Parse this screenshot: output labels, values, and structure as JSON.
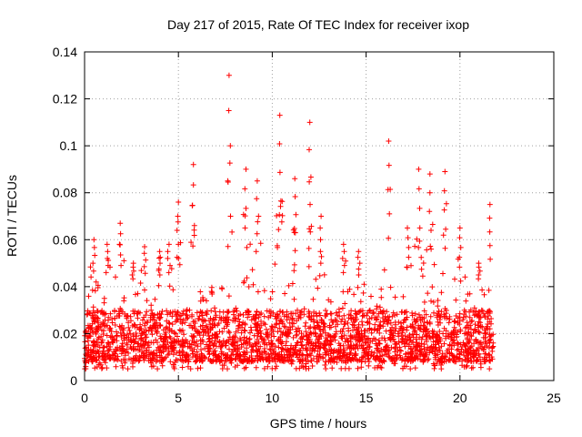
{
  "chart_data": {
    "type": "scatter",
    "title": "Day 217 of 2015, Rate Of TEC Index for receiver ixop",
    "xlabel": "GPS time / hours",
    "ylabel": "ROTI / TECUs",
    "xlim": [
      0,
      25
    ],
    "ylim": [
      0,
      0.14
    ],
    "x_ticks": [
      0,
      5,
      10,
      15,
      20,
      25
    ],
    "y_ticks": [
      0,
      0.02,
      0.04,
      0.06,
      0.08,
      0.1,
      0.12,
      0.14
    ],
    "x_tick_labels": [
      "0",
      "5",
      "10",
      "15",
      "20",
      "25"
    ],
    "y_tick_labels": [
      "0",
      "0.02",
      "0.04",
      "0.06",
      "0.08",
      "0.1",
      "0.12",
      "0.14"
    ],
    "grid": true,
    "marker": "+",
    "color": "#ff0000",
    "series": [
      {
        "name": "ROTI",
        "x_range": [
          0,
          21.8
        ],
        "typical_range": [
          0.005,
          0.04
        ],
        "peaks": [
          {
            "x": 0.5,
            "y": 0.06
          },
          {
            "x": 1.2,
            "y": 0.058
          },
          {
            "x": 1.9,
            "y": 0.067
          },
          {
            "x": 2.6,
            "y": 0.05
          },
          {
            "x": 3.2,
            "y": 0.057
          },
          {
            "x": 4.0,
            "y": 0.055
          },
          {
            "x": 4.5,
            "y": 0.058
          },
          {
            "x": 5.0,
            "y": 0.076
          },
          {
            "x": 5.8,
            "y": 0.092
          },
          {
            "x": 7.7,
            "y": 0.13
          },
          {
            "x": 8.6,
            "y": 0.09
          },
          {
            "x": 9.2,
            "y": 0.085
          },
          {
            "x": 10.4,
            "y": 0.113
          },
          {
            "x": 11.2,
            "y": 0.086
          },
          {
            "x": 12.0,
            "y": 0.11
          },
          {
            "x": 12.6,
            "y": 0.07
          },
          {
            "x": 13.8,
            "y": 0.058
          },
          {
            "x": 14.6,
            "y": 0.055
          },
          {
            "x": 16.2,
            "y": 0.102
          },
          {
            "x": 17.2,
            "y": 0.065
          },
          {
            "x": 17.8,
            "y": 0.09
          },
          {
            "x": 18.4,
            "y": 0.088
          },
          {
            "x": 19.2,
            "y": 0.089
          },
          {
            "x": 20.0,
            "y": 0.065
          },
          {
            "x": 21.0,
            "y": 0.05
          },
          {
            "x": 21.6,
            "y": 0.075
          }
        ]
      }
    ]
  }
}
